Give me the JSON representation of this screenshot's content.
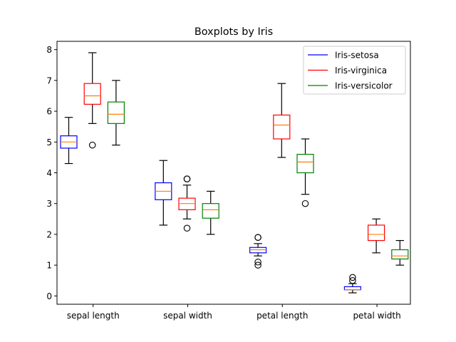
{
  "chart_data": {
    "type": "boxplot",
    "title": "Boxplots by Iris",
    "xlabel": "",
    "ylabel": "",
    "categories": [
      "sepal length",
      "sepal width",
      "petal length",
      "petal width"
    ],
    "y_ticks": [
      0,
      1,
      2,
      3,
      4,
      5,
      6,
      7,
      8
    ],
    "ylim": [
      -0.27,
      8.27
    ],
    "legend_position": "top-right",
    "series": [
      {
        "name": "Iris-setosa",
        "color": "#0000ff",
        "median_color": "#ff7f0e",
        "boxes": [
          {
            "whislo": 4.3,
            "q1": 4.8,
            "med": 5.0,
            "q3": 5.2,
            "whishi": 5.8,
            "fliers": []
          },
          {
            "whislo": 2.3,
            "q1": 3.125,
            "med": 3.4,
            "q3": 3.675,
            "whishi": 4.4,
            "fliers": []
          },
          {
            "whislo": 1.3,
            "q1": 1.4,
            "med": 1.5,
            "q3": 1.575,
            "whishi": 1.7,
            "fliers": [
              1.0,
              1.1,
              1.9,
              1.9
            ]
          },
          {
            "whislo": 0.1,
            "q1": 0.2,
            "med": 0.2,
            "q3": 0.3,
            "whishi": 0.4,
            "fliers": [
              0.5,
              0.6
            ]
          }
        ]
      },
      {
        "name": "Iris-virginica",
        "color": "#ff0000",
        "median_color": "#ff7f0e",
        "boxes": [
          {
            "whislo": 5.6,
            "q1": 6.225,
            "med": 6.5,
            "q3": 6.9,
            "whishi": 7.9,
            "fliers": [
              4.9
            ]
          },
          {
            "whislo": 2.5,
            "q1": 2.8,
            "med": 3.0,
            "q3": 3.175,
            "whishi": 3.6,
            "fliers": [
              2.2,
              3.8,
              3.8
            ]
          },
          {
            "whislo": 4.5,
            "q1": 5.1,
            "med": 5.55,
            "q3": 5.875,
            "whishi": 6.9,
            "fliers": []
          },
          {
            "whislo": 1.4,
            "q1": 1.8,
            "med": 2.0,
            "q3": 2.3,
            "whishi": 2.5,
            "fliers": []
          }
        ]
      },
      {
        "name": "Iris-versicolor",
        "color": "#008000",
        "median_color": "#ff7f0e",
        "boxes": [
          {
            "whislo": 4.9,
            "q1": 5.6,
            "med": 5.9,
            "q3": 6.3,
            "whishi": 7.0,
            "fliers": []
          },
          {
            "whislo": 2.0,
            "q1": 2.525,
            "med": 2.8,
            "q3": 3.0,
            "whishi": 3.4,
            "fliers": []
          },
          {
            "whislo": 3.3,
            "q1": 4.0,
            "med": 4.35,
            "q3": 4.6,
            "whishi": 5.1,
            "fliers": [
              3.0
            ]
          },
          {
            "whislo": 1.0,
            "q1": 1.2,
            "med": 1.3,
            "q3": 1.5,
            "whishi": 1.8,
            "fliers": []
          }
        ]
      }
    ]
  }
}
